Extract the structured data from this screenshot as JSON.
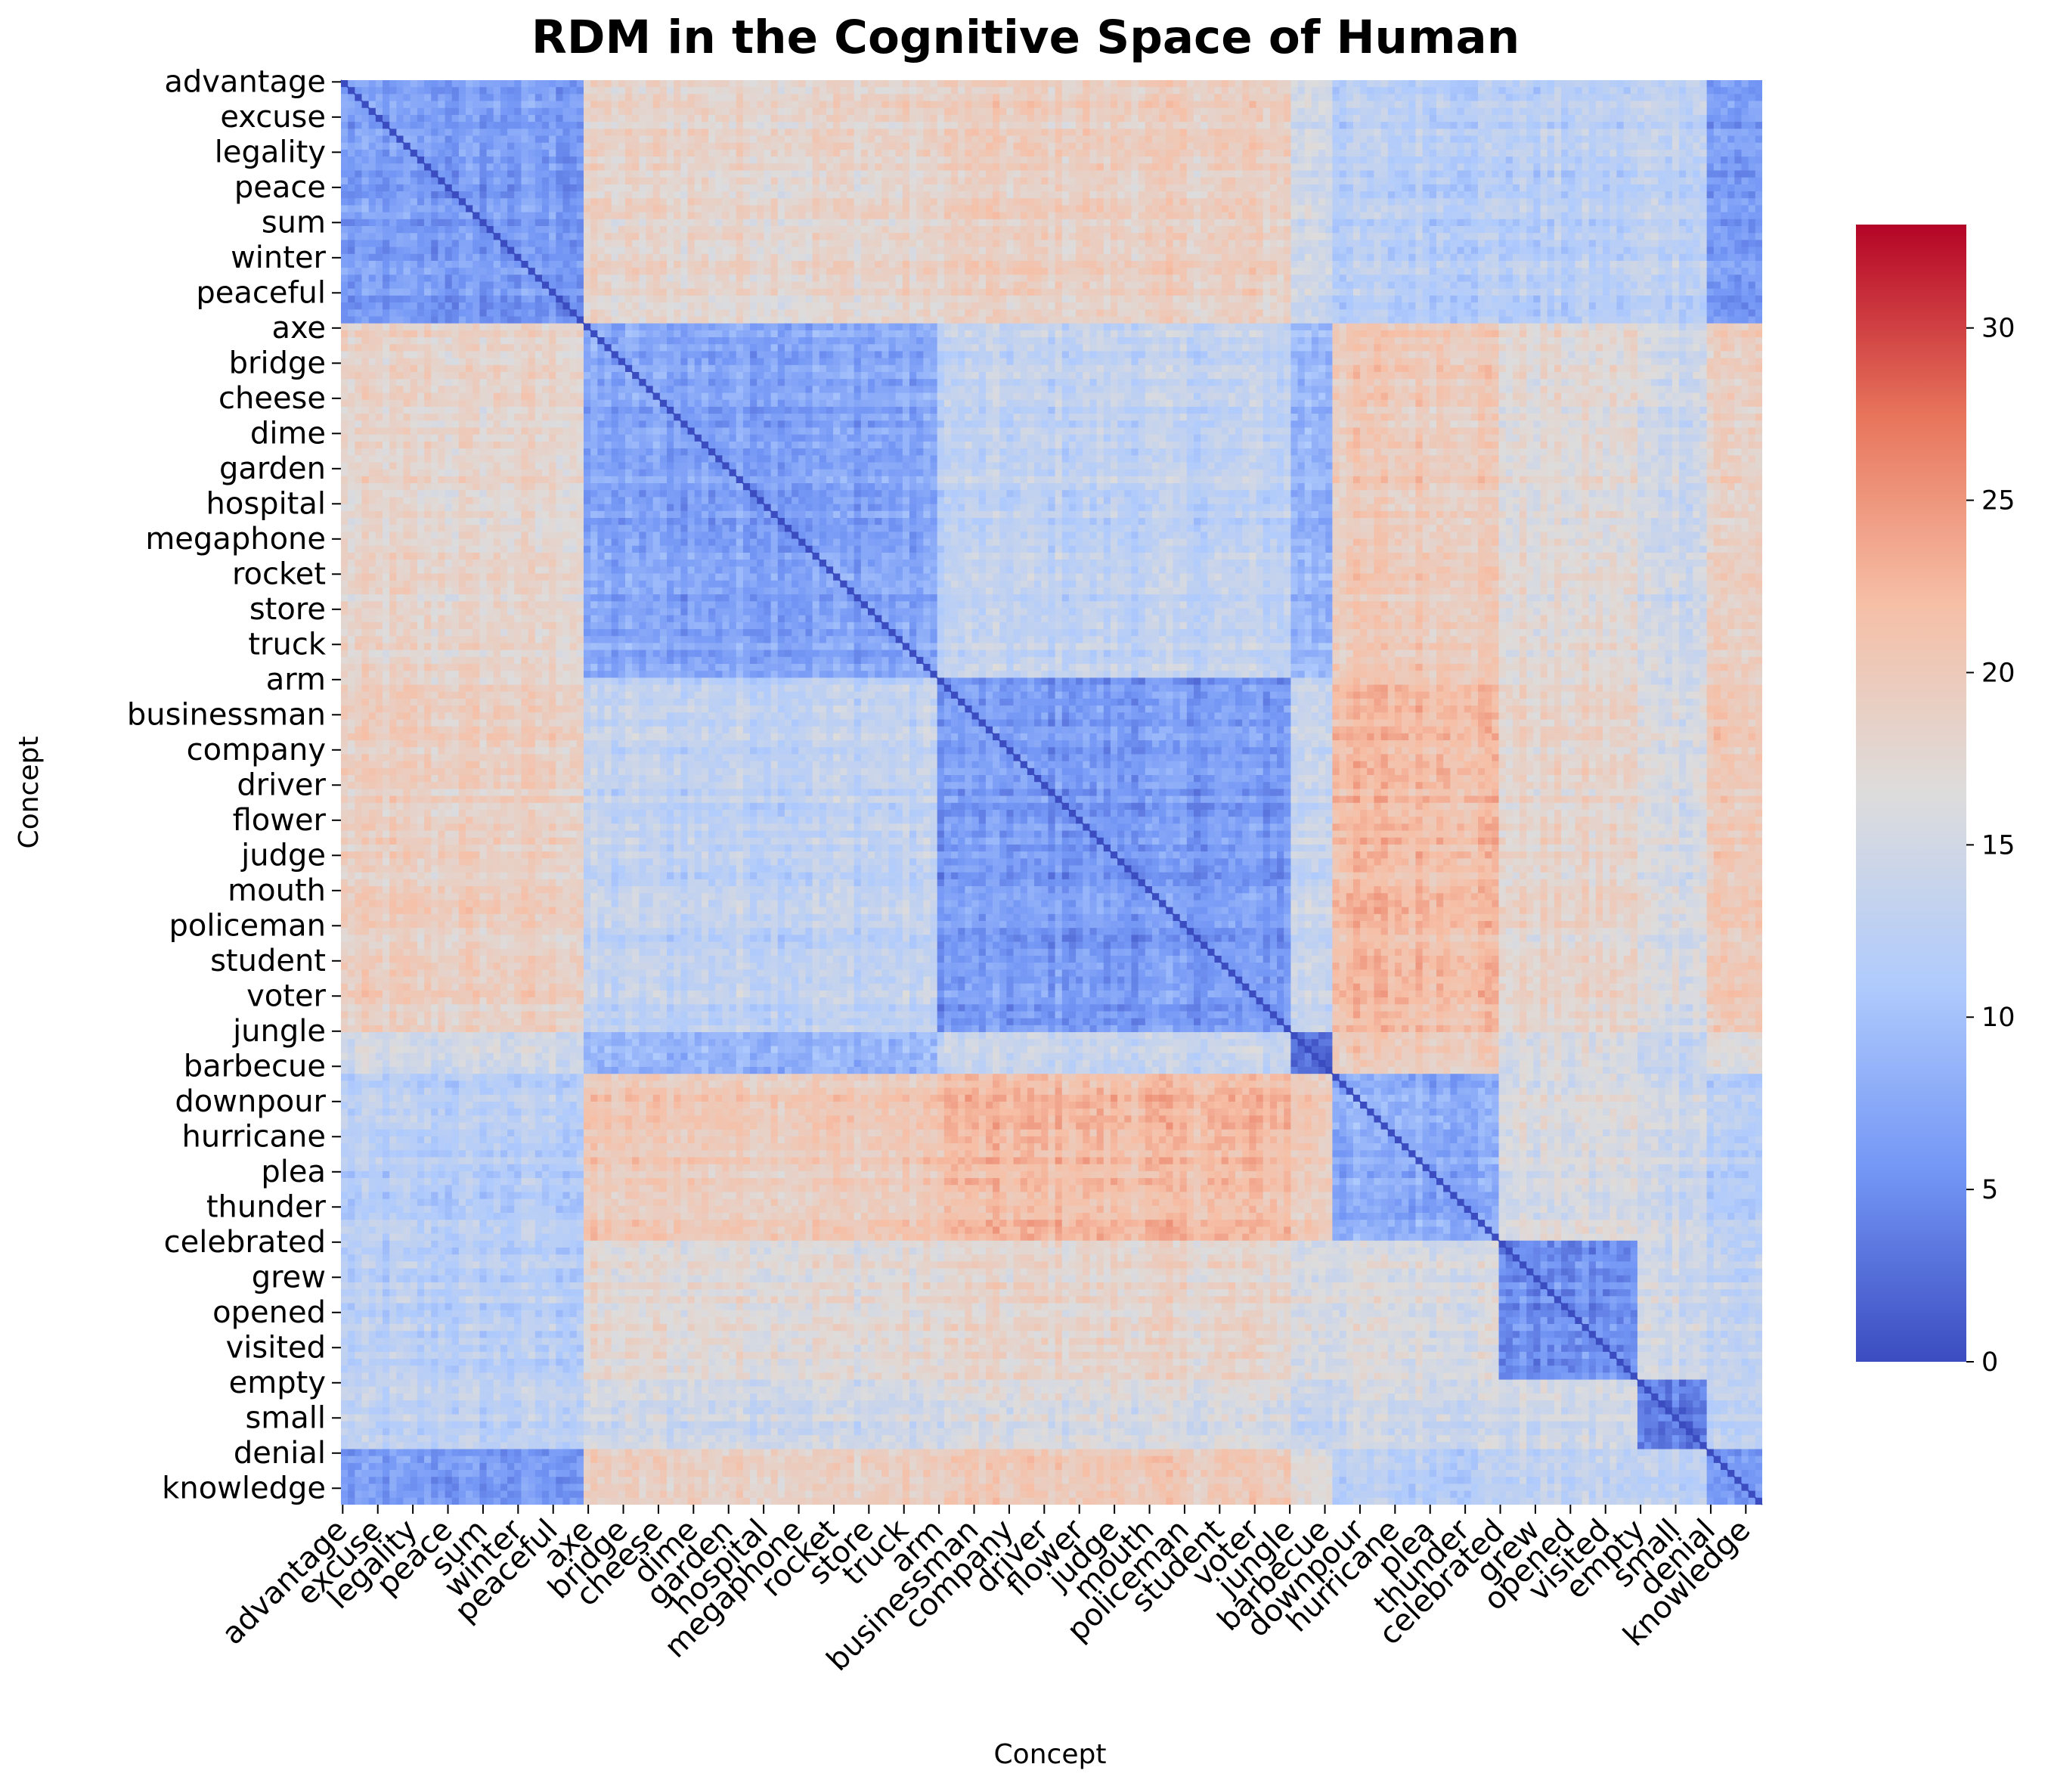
{
  "chart_data": {
    "type": "heatmap",
    "title": "RDM in the Cognitive Space of Human",
    "xlabel": "Concept",
    "ylabel": "Concept",
    "tick_labels": [
      "advantage",
      "excuse",
      "legality",
      "peace",
      "sum",
      "winter",
      "peaceful",
      "axe",
      "bridge",
      "cheese",
      "dime",
      "garden",
      "hospital",
      "megaphone",
      "rocket",
      "store",
      "truck",
      "arm",
      "businessman",
      "company",
      "driver",
      "flower",
      "judge",
      "mouth",
      "policeman",
      "student",
      "voter",
      "jungle",
      "barbecue",
      "downpour",
      "hurricane",
      "plea",
      "thunder",
      "celebrated",
      "grew",
      "opened",
      "visited",
      "empty",
      "small",
      "denial",
      "knowledge"
    ],
    "clusters": [
      {
        "tick_start": 0,
        "tick_end": 7
      },
      {
        "tick_start": 7,
        "tick_end": 17
      },
      {
        "tick_start": 17,
        "tick_end": 27
      },
      {
        "tick_start": 27,
        "tick_end": 28.2
      },
      {
        "tick_start": 28.2,
        "tick_end": 33
      },
      {
        "tick_start": 33,
        "tick_end": 37
      },
      {
        "tick_start": 37,
        "tick_end": 38.9
      },
      {
        "tick_start": 38.9,
        "tick_end": 41
      }
    ],
    "block_mean_distance": [
      [
        6,
        18,
        19,
        15,
        12,
        12,
        13,
        6
      ],
      [
        18,
        7,
        13,
        9,
        20,
        17,
        15,
        19
      ],
      [
        19,
        13,
        6,
        14,
        22,
        18,
        16,
        20
      ],
      [
        15,
        9,
        14,
        3,
        20,
        16,
        14,
        17
      ],
      [
        12,
        20,
        22,
        20,
        8,
        16,
        15,
        12
      ],
      [
        12,
        17,
        18,
        16,
        16,
        5,
        15,
        13
      ],
      [
        13,
        15,
        16,
        14,
        15,
        15,
        4,
        13
      ],
      [
        6,
        19,
        20,
        17,
        12,
        13,
        13,
        6
      ]
    ],
    "diagonal_value": 0,
    "colormap": "coolwarm",
    "color_stops": [
      "#3b4cc0",
      "#7396f5",
      "#b0cbfc",
      "#dddcdc",
      "#f6bfa6",
      "#e7745b",
      "#b40426"
    ],
    "colorbar": {
      "vmin": 0,
      "vmax": 33,
      "ticks": [
        0,
        5,
        10,
        15,
        20,
        25,
        30
      ]
    }
  }
}
